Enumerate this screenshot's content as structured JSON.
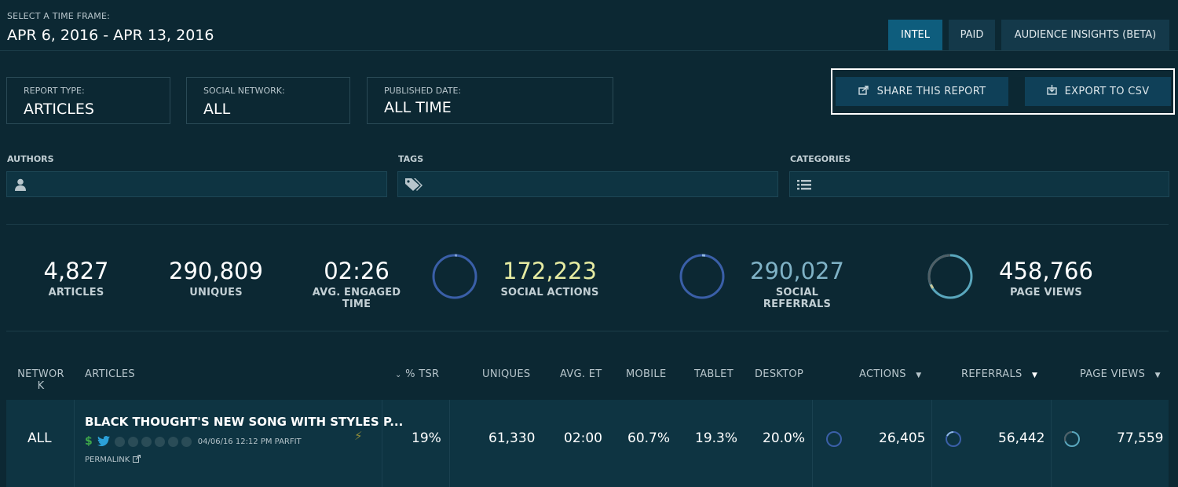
{
  "header": {
    "time_frame_label": "SELECT A TIME FRAME:",
    "time_frame_value": "APR 6, 2016 - APR 13, 2016",
    "tabs": [
      {
        "label": "INTEL",
        "active": true
      },
      {
        "label": "PAID",
        "active": false
      },
      {
        "label": "AUDIENCE INSIGHTS (BETA)",
        "active": false
      }
    ]
  },
  "filters": {
    "report_type": {
      "label": "REPORT TYPE:",
      "value": "ARTICLES"
    },
    "social_network": {
      "label": "SOCIAL NETWORK:",
      "value": "ALL"
    },
    "published_date": {
      "label": "PUBLISHED DATE:",
      "value": "ALL TIME"
    }
  },
  "actions": {
    "share_label": "SHARE THIS REPORT",
    "export_label": "EXPORT TO CSV"
  },
  "fields": {
    "authors_label": "AUTHORS",
    "tags_label": "TAGS",
    "categories_label": "CATEGORIES"
  },
  "stats": {
    "articles": {
      "value": "4,827",
      "label": "ARTICLES"
    },
    "uniques": {
      "value": "290,809",
      "label": "UNIQUES"
    },
    "engaged_time": {
      "value": "02:26",
      "label": "AVG. ENGAGED TIME"
    },
    "social_actions": {
      "value": "172,223",
      "label": "SOCIAL ACTIONS",
      "color": "#e6eba2"
    },
    "social_referrals": {
      "value": "290,027",
      "label": "SOCIAL REFERRALS",
      "color": "#7fb2c6"
    },
    "page_views": {
      "value": "458,766",
      "label": "PAGE VIEWS"
    }
  },
  "table": {
    "headers": {
      "network": "NETWOR K",
      "articles": "ARTICLES",
      "tsr": "% TSR",
      "uniques": "UNIQUES",
      "avg_et": "AVG. ET",
      "mobile": "MOBILE",
      "tablet": "TABLET",
      "desktop": "DESKTOP",
      "actions": "ACTIONS",
      "referrals": "REFERRALS",
      "page_views": "PAGE VIEWS"
    },
    "row": {
      "network": "ALL",
      "title": "BLACK THOUGHT'S NEW SONG WITH STYLES P...",
      "meta": "04/06/16 12:12 PM PARFIT",
      "permalink": "PERMALINK",
      "tsr": "19%",
      "uniques": "61,330",
      "avg_et": "02:00",
      "mobile": "60.7%",
      "tablet": "19.3%",
      "desktop": "20.0%",
      "actions": "26,405",
      "referrals": "56,442",
      "page_views": "77,559"
    }
  },
  "colors": {
    "background": "#0c2833",
    "accent_tab": "#0e5d7d",
    "ring_blue": "#3a5fa8",
    "ring_teal": "#5aa7bd",
    "dollar_green": "#3ea84a",
    "twitter_blue": "#2ba0d8"
  }
}
